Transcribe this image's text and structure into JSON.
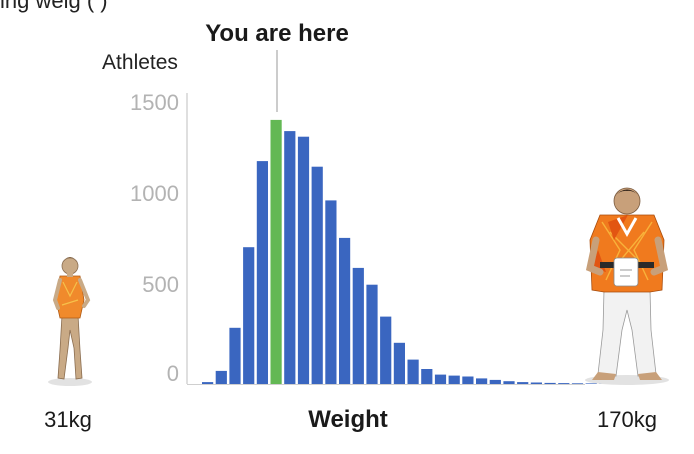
{
  "top_cut_text": "ing weig (      )",
  "chart_data": {
    "type": "bar",
    "annotation": "You are here",
    "ylabel": "Athletes",
    "xlabel": "Weight",
    "x_min_label": "31kg",
    "x_max_label": "170kg",
    "yticks": [
      "0",
      "500",
      "1000",
      "1500"
    ],
    "ylim": [
      0,
      1500
    ],
    "highlight_index": 5,
    "colors": {
      "bar": "#3a66c0",
      "highlight": "#63b854",
      "axis": "#bfbfbf",
      "tick": "#b3b3b3"
    },
    "values": [
      10,
      70,
      300,
      730,
      1190,
      1410,
      1350,
      1320,
      1160,
      980,
      780,
      620,
      530,
      360,
      220,
      130,
      80,
      50,
      45,
      40,
      30,
      22,
      15,
      10,
      8,
      6,
      5,
      4,
      3,
      2
    ]
  },
  "figures": {
    "left": "gymnast-figure",
    "right": "judoka-figure"
  }
}
